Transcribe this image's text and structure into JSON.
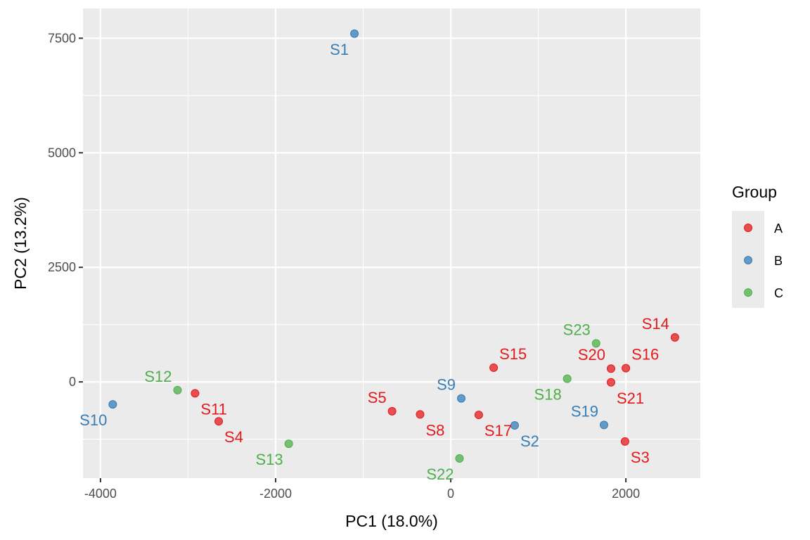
{
  "chart_data": {
    "type": "scatter",
    "xlabel": "PC1 (18.0%)",
    "ylabel": "PC2 (13.2%)",
    "xlim": [
      -4200,
      2850
    ],
    "ylim": [
      -2100,
      8150
    ],
    "xticks": [
      -4000,
      -2000,
      0,
      2000
    ],
    "yticks": [
      0,
      2500,
      5000,
      7500
    ],
    "xtick_labels": [
      "-4000",
      "-2000",
      "0",
      "2000"
    ],
    "ytick_labels": [
      "0",
      "2500",
      "5000",
      "7500"
    ],
    "grid": true,
    "legend": {
      "title": "Group",
      "placement": "right",
      "entries": [
        {
          "name": "A",
          "color": "#E41A1C"
        },
        {
          "name": "B",
          "color": "#377EB8"
        },
        {
          "name": "C",
          "color": "#4DAF4A"
        }
      ]
    },
    "points": [
      {
        "label": "S1",
        "group": "B",
        "x": -1100,
        "y": 7600,
        "label_pos": "bottom-left"
      },
      {
        "label": "S2",
        "group": "B",
        "x": 730,
        "y": -950,
        "label_pos": "bottom-right"
      },
      {
        "label": "S3",
        "group": "A",
        "x": 1990,
        "y": -1300,
        "label_pos": "bottom-right"
      },
      {
        "label": "S4",
        "group": "A",
        "x": -2650,
        "y": -860,
        "label_pos": "bottom-right"
      },
      {
        "label": "S5",
        "group": "A",
        "x": -670,
        "y": -640,
        "label_pos": "top-left"
      },
      {
        "label": "S8",
        "group": "A",
        "x": -350,
        "y": -710,
        "label_pos": "bottom-right"
      },
      {
        "label": "S9",
        "group": "B",
        "x": 120,
        "y": -360,
        "label_pos": "top-left"
      },
      {
        "label": "S10",
        "group": "B",
        "x": -3860,
        "y": -490,
        "label_pos": "bottom-left"
      },
      {
        "label": "S11",
        "group": "A",
        "x": -2920,
        "y": -250,
        "label_pos": "bottom-right"
      },
      {
        "label": "S12",
        "group": "C",
        "x": -3120,
        "y": -180,
        "label_pos": "top-left"
      },
      {
        "label": "S13",
        "group": "C",
        "x": -1850,
        "y": -1350,
        "label_pos": "bottom-left"
      },
      {
        "label": "S14",
        "group": "A",
        "x": 2560,
        "y": 970,
        "label_pos": "top-left"
      },
      {
        "label": "S15",
        "group": "A",
        "x": 490,
        "y": 310,
        "label_pos": "top-right"
      },
      {
        "label": "S16",
        "group": "A",
        "x": 2000,
        "y": 300,
        "label_pos": "top-right"
      },
      {
        "label": "S17",
        "group": "A",
        "x": 320,
        "y": -720,
        "label_pos": "bottom-right"
      },
      {
        "label": "S18",
        "group": "C",
        "x": 1330,
        "y": 70,
        "label_pos": "bottom-left"
      },
      {
        "label": "S19",
        "group": "B",
        "x": 1750,
        "y": -940,
        "label_pos": "top-left"
      },
      {
        "label": "S20",
        "group": "A",
        "x": 1830,
        "y": 290,
        "label_pos": "top-left"
      },
      {
        "label": "S21",
        "group": "A",
        "x": 1830,
        "y": -10,
        "label_pos": "bottom-right"
      },
      {
        "label": "S22",
        "group": "C",
        "x": 100,
        "y": -1670,
        "label_pos": "bottom-left"
      },
      {
        "label": "S23",
        "group": "C",
        "x": 1660,
        "y": 840,
        "label_pos": "top-left"
      }
    ]
  }
}
